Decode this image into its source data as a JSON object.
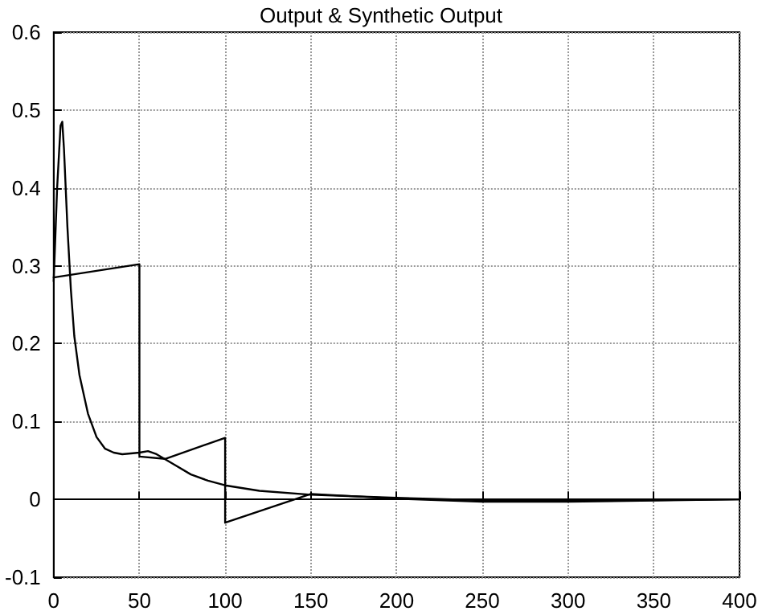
{
  "chart_data": {
    "type": "line",
    "title": "Output & Synthetic Output",
    "series": [
      {
        "color": "#000000",
        "x": [
          0,
          2,
          4,
          5,
          6,
          8,
          10,
          12,
          15,
          20,
          25,
          30,
          35,
          40,
          50,
          55,
          60,
          70,
          80,
          90,
          100,
          120,
          150,
          200,
          250,
          300,
          350,
          400
        ],
        "values": [
          0.28,
          0.4,
          0.48,
          0.485,
          0.45,
          0.35,
          0.27,
          0.21,
          0.16,
          0.11,
          0.08,
          0.065,
          0.06,
          0.058,
          0.06,
          0.062,
          0.058,
          0.045,
          0.032,
          0.024,
          0.018,
          0.011,
          0.006,
          0.002,
          -0.001,
          -0.002,
          -0.001,
          0
        ]
      },
      {
        "color": "#000000",
        "x": [
          0,
          50,
          50,
          65,
          100,
          100,
          150,
          200,
          250,
          300,
          400
        ],
        "values": [
          0.285,
          0.302,
          0.055,
          0.052,
          0.079,
          -0.03,
          0.007,
          0.001,
          -0.003,
          -0.003,
          0
        ]
      }
    ],
    "xlim": [
      0,
      400
    ],
    "xticks": [
      0,
      50,
      100,
      150,
      200,
      250,
      300,
      350,
      400
    ],
    "ylim": [
      -0.1,
      0.6
    ],
    "yticks": [
      -0.1,
      0,
      0.1,
      0.2,
      0.3,
      0.4,
      0.5,
      0.6
    ],
    "grid": true,
    "marker": "none",
    "line_style": "solid"
  }
}
